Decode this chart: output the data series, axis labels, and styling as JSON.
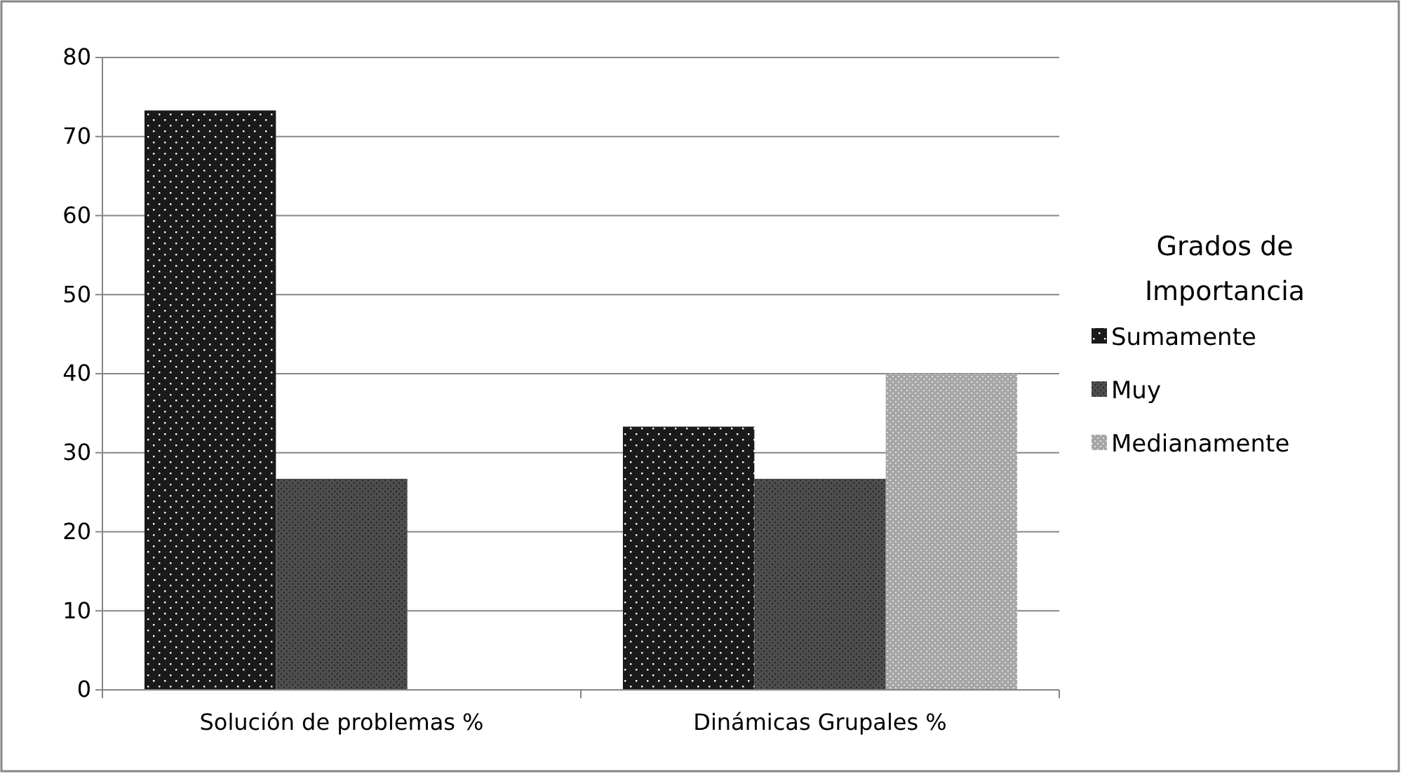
{
  "chart_data": {
    "type": "bar",
    "legend_title": "Grados de Importancia",
    "categories": [
      "Solución de problemas  %",
      "Dinámicas Grupales  %"
    ],
    "series": [
      {
        "name": "Sumamente",
        "color": "#1a1a1a",
        "values": [
          73.3,
          33.3
        ]
      },
      {
        "name": "Muy",
        "color": "#4d4d4d",
        "values": [
          26.7,
          26.7
        ]
      },
      {
        "name": "Medianamente",
        "color": "#a6a6a6",
        "values": [
          null,
          40
        ]
      }
    ],
    "ylim": [
      0,
      80
    ],
    "yticks": [
      0,
      10,
      20,
      30,
      40,
      50,
      60,
      70,
      80
    ],
    "grid": "y",
    "legend": "right"
  }
}
